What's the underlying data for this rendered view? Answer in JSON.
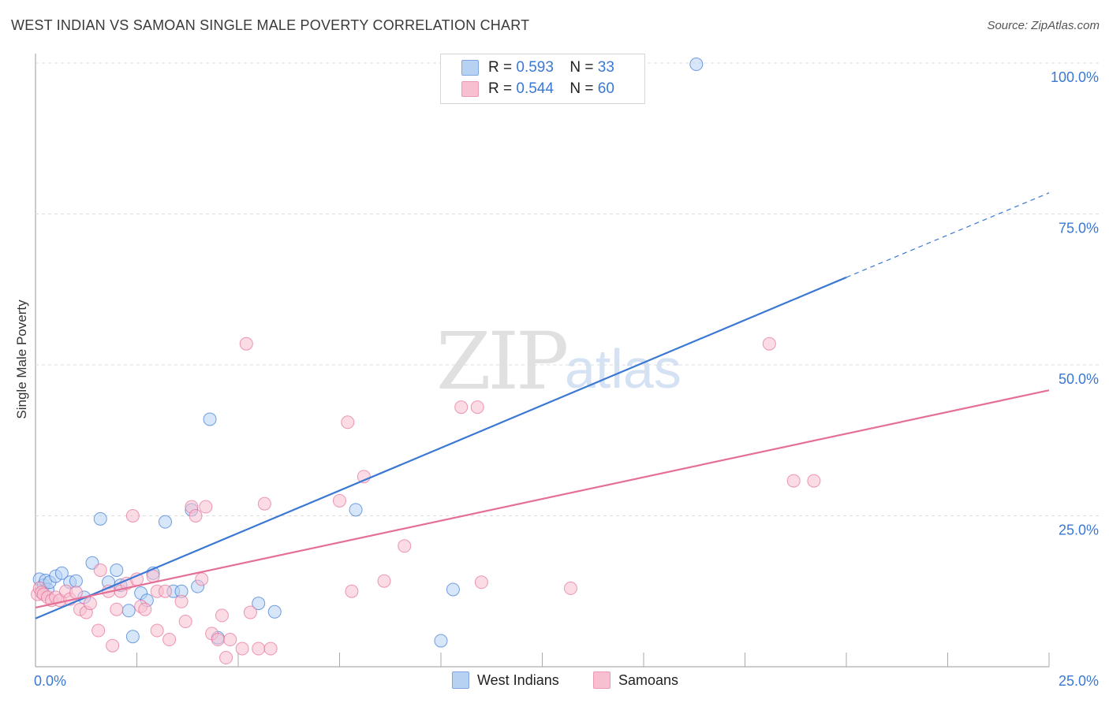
{
  "title": "WEST INDIAN VS SAMOAN SINGLE MALE POVERTY CORRELATION CHART",
  "source": "Source: ZipAtlas.com",
  "watermark": {
    "part1": "ZIP",
    "part2": "atlas"
  },
  "colors": {
    "blue": "#3a78d4",
    "blue_fill": "#b7d1f3",
    "pink": "#e46f97",
    "pink_fill": "#f7bfd0",
    "grid": "#dcdcdc",
    "tick_text": "#3a78d4"
  },
  "legend": {
    "blue": {
      "r_label": "R =",
      "r_value": "0.593",
      "n_label": "N =",
      "n_value": "33"
    },
    "pink": {
      "r_label": "R =",
      "r_value": "0.544",
      "n_label": "N =",
      "n_value": "60"
    }
  },
  "bottom_legend": {
    "blue": "West Indians",
    "pink": "Samoans"
  },
  "chart_data": {
    "type": "scatter",
    "title": "WEST INDIAN VS SAMOAN SINGLE MALE POVERTY CORRELATION CHART",
    "xlabel": "",
    "ylabel": "Single Male Poverty",
    "xlim": [
      0,
      25
    ],
    "ylim": [
      0,
      100
    ],
    "x_tick_labels": [
      "0.0%",
      "25.0%"
    ],
    "y_tick_labels": [
      "25.0%",
      "50.0%",
      "75.0%",
      "100.0%"
    ],
    "y_ticks": [
      25,
      50,
      75,
      100
    ],
    "x_minor_ticks": [
      2.5,
      5,
      7.5,
      10,
      12.5,
      15,
      17.5,
      20,
      22.5,
      25
    ],
    "series": [
      {
        "name": "West Indians",
        "color": "blue",
        "trend": {
          "x0": 0,
          "y0": 8.0,
          "x1": 20.0,
          "y1": 64.5,
          "dash_x1": 25.0,
          "dash_y1": 78.5
        },
        "points": [
          [
            0.1,
            14.5
          ],
          [
            0.2,
            13.5
          ],
          [
            0.25,
            14.3
          ],
          [
            0.3,
            12.8
          ],
          [
            0.35,
            14.0
          ],
          [
            0.5,
            15.0
          ],
          [
            0.65,
            15.5
          ],
          [
            0.85,
            14.0
          ],
          [
            1.0,
            14.2
          ],
          [
            1.2,
            11.5
          ],
          [
            1.4,
            17.2
          ],
          [
            1.6,
            24.5
          ],
          [
            1.8,
            14.0
          ],
          [
            2.0,
            16.0
          ],
          [
            2.1,
            13.5
          ],
          [
            2.3,
            9.3
          ],
          [
            2.4,
            5.0
          ],
          [
            2.6,
            12.2
          ],
          [
            2.75,
            11.0
          ],
          [
            2.9,
            15.5
          ],
          [
            3.2,
            24.0
          ],
          [
            3.4,
            12.5
          ],
          [
            3.6,
            12.5
          ],
          [
            3.85,
            26.0
          ],
          [
            4.0,
            13.3
          ],
          [
            4.3,
            41.0
          ],
          [
            4.5,
            4.8
          ],
          [
            5.5,
            10.5
          ],
          [
            5.9,
            9.1
          ],
          [
            7.9,
            26.0
          ],
          [
            10.0,
            4.3
          ],
          [
            10.3,
            12.8
          ],
          [
            16.3,
            99.8
          ]
        ]
      },
      {
        "name": "Samoans",
        "color": "pink",
        "trend": {
          "x0": 0,
          "y0": 9.8,
          "x1": 25.0,
          "y1": 45.8
        },
        "points": [
          [
            0.05,
            12.0
          ],
          [
            0.1,
            13.0
          ],
          [
            0.15,
            12.3
          ],
          [
            0.2,
            12.0
          ],
          [
            0.3,
            11.5
          ],
          [
            0.4,
            11.0
          ],
          [
            0.5,
            11.5
          ],
          [
            0.6,
            11.0
          ],
          [
            0.75,
            12.5
          ],
          [
            0.85,
            11.2
          ],
          [
            1.0,
            12.3
          ],
          [
            1.1,
            9.5
          ],
          [
            1.25,
            9.0
          ],
          [
            1.35,
            10.5
          ],
          [
            1.6,
            16.0
          ],
          [
            1.8,
            12.5
          ],
          [
            2.0,
            9.5
          ],
          [
            2.1,
            12.5
          ],
          [
            2.25,
            13.8
          ],
          [
            2.4,
            25.0
          ],
          [
            2.5,
            14.5
          ],
          [
            2.6,
            10.0
          ],
          [
            2.7,
            9.5
          ],
          [
            2.9,
            15.0
          ],
          [
            3.0,
            12.5
          ],
          [
            3.2,
            12.5
          ],
          [
            3.3,
            4.5
          ],
          [
            3.6,
            10.8
          ],
          [
            3.7,
            7.5
          ],
          [
            3.85,
            26.5
          ],
          [
            3.95,
            25.0
          ],
          [
            4.1,
            14.5
          ],
          [
            4.2,
            26.5
          ],
          [
            4.35,
            5.5
          ],
          [
            4.5,
            4.5
          ],
          [
            4.6,
            8.5
          ],
          [
            4.7,
            1.5
          ],
          [
            4.8,
            4.5
          ],
          [
            5.1,
            3.0
          ],
          [
            5.2,
            53.5
          ],
          [
            5.3,
            9.0
          ],
          [
            5.5,
            3.0
          ],
          [
            5.65,
            27.0
          ],
          [
            5.8,
            3.0
          ],
          [
            7.5,
            27.5
          ],
          [
            7.7,
            40.5
          ],
          [
            7.8,
            12.5
          ],
          [
            8.1,
            31.5
          ],
          [
            8.6,
            14.2
          ],
          [
            9.1,
            20.0
          ],
          [
            10.5,
            43.0
          ],
          [
            10.9,
            43.0
          ],
          [
            11.0,
            14.0
          ],
          [
            13.2,
            13.0
          ],
          [
            18.1,
            53.5
          ],
          [
            18.7,
            30.8
          ],
          [
            19.2,
            30.8
          ],
          [
            1.9,
            3.5
          ],
          [
            3.0,
            6.0
          ],
          [
            1.55,
            6.0
          ]
        ]
      }
    ]
  }
}
